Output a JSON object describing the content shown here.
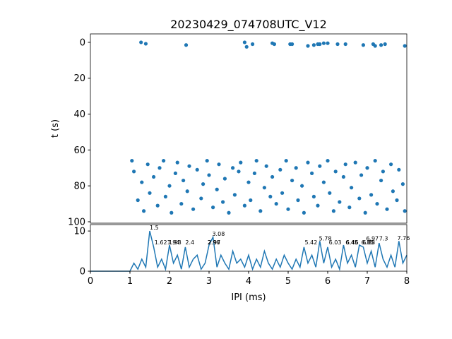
{
  "chart_data": [
    {
      "type": "scatter",
      "title": "20230429_074708UTC_V12",
      "ylabel": "t (s)",
      "color": "#1f77b4",
      "xlim": [
        0,
        8
      ],
      "ylim": [
        -4.7,
        100.8
      ],
      "y_inverted": true,
      "yticks": [
        0,
        20,
        40,
        60,
        80,
        100
      ],
      "x": [
        1.28,
        1.4,
        2.42,
        3.9,
        3.95,
        4.1,
        4.6,
        4.65,
        5.05,
        5.1,
        5.5,
        5.65,
        5.75,
        5.8,
        5.9,
        6.0,
        6.25,
        6.45,
        6.9,
        7.15,
        7.2,
        7.35,
        7.45,
        7.95,
        1.05,
        1.1,
        1.2,
        1.3,
        1.35,
        1.45,
        1.5,
        1.6,
        1.7,
        1.75,
        1.85,
        1.9,
        2.0,
        2.05,
        2.15,
        2.2,
        2.3,
        2.35,
        2.45,
        2.5,
        2.6,
        2.7,
        2.8,
        2.85,
        2.95,
        3.0,
        3.1,
        3.2,
        3.25,
        3.35,
        3.4,
        3.5,
        3.6,
        3.65,
        3.75,
        3.8,
        3.9,
        4.0,
        4.05,
        4.15,
        4.2,
        4.3,
        4.4,
        4.45,
        4.55,
        4.6,
        4.7,
        4.8,
        4.85,
        4.95,
        5.0,
        5.1,
        5.2,
        5.25,
        5.35,
        5.4,
        5.5,
        5.6,
        5.65,
        5.75,
        5.8,
        5.9,
        6.0,
        6.05,
        6.15,
        6.2,
        6.3,
        6.4,
        6.45,
        6.55,
        6.6,
        6.7,
        6.8,
        6.85,
        6.95,
        7.0,
        7.1,
        7.2,
        7.25,
        7.35,
        7.4,
        7.5,
        7.6,
        7.65,
        7.75,
        7.8,
        7.9,
        7.95
      ],
      "y": [
        0,
        0.8,
        1.5,
        0,
        2.5,
        1,
        0.5,
        1,
        1,
        1,
        2,
        1.5,
        1,
        1,
        0.5,
        0.5,
        1,
        1,
        1.5,
        1,
        2,
        1.5,
        1,
        2,
        66,
        72,
        88,
        78,
        94,
        68,
        84,
        75,
        91,
        70,
        66,
        86,
        80,
        95,
        73,
        67,
        90,
        77,
        83,
        69,
        93,
        71,
        87,
        79,
        66,
        74,
        92,
        82,
        68,
        89,
        76,
        95,
        70,
        85,
        72,
        67,
        91,
        78,
        88,
        73,
        66,
        94,
        81,
        69,
        86,
        75,
        90,
        71,
        84,
        66,
        93,
        77,
        70,
        88,
        80,
        95,
        67,
        73,
        86,
        91,
        69,
        78,
        66,
        84,
        94,
        72,
        89,
        75,
        68,
        92,
        81,
        67,
        87,
        74,
        95,
        70,
        85,
        66,
        90,
        77,
        72,
        93,
        68,
        83,
        88,
        71,
        79,
        94
      ]
    },
    {
      "type": "line",
      "xlabel": "IPI (ms)",
      "color": "#1f77b4",
      "xlim": [
        0,
        8
      ],
      "xticks": [
        0,
        1,
        2,
        3,
        4,
        5,
        6,
        7,
        8
      ],
      "ylim": [
        0,
        11.6
      ],
      "yticks": [
        0,
        10
      ],
      "x": [
        0,
        0.1,
        0.2,
        0.3,
        0.4,
        0.5,
        0.6,
        0.7,
        0.8,
        0.9,
        1.0,
        1.1,
        1.2,
        1.3,
        1.4,
        1.5,
        1.6,
        1.7,
        1.8,
        1.9,
        2.0,
        2.1,
        2.2,
        2.3,
        2.4,
        2.5,
        2.6,
        2.7,
        2.8,
        2.9,
        3.0,
        3.1,
        3.2,
        3.3,
        3.4,
        3.5,
        3.6,
        3.7,
        3.8,
        3.9,
        4.0,
        4.1,
        4.2,
        4.3,
        4.4,
        4.5,
        4.6,
        4.7,
        4.8,
        4.9,
        5.0,
        5.1,
        5.2,
        5.3,
        5.4,
        5.5,
        5.6,
        5.7,
        5.8,
        5.9,
        6.0,
        6.1,
        6.2,
        6.3,
        6.4,
        6.5,
        6.6,
        6.7,
        6.8,
        6.9,
        7.0,
        7.1,
        7.2,
        7.3,
        7.4,
        7.5,
        7.6,
        7.7,
        7.8,
        7.9,
        8.0
      ],
      "values": [
        0,
        0,
        0,
        0,
        0,
        0,
        0,
        0,
        0,
        0,
        0,
        2,
        0.5,
        3,
        1,
        10,
        6,
        1,
        3,
        0.5,
        6.5,
        2,
        4,
        0.5,
        6,
        1,
        3,
        4,
        0.5,
        2,
        6.5,
        8.5,
        1,
        4,
        2,
        0.5,
        5,
        2,
        3,
        1,
        4,
        0.5,
        3,
        1,
        5,
        2,
        0.5,
        3,
        1,
        4,
        2,
        0.5,
        3,
        1,
        6,
        2,
        4,
        1,
        7.5,
        2,
        6,
        1,
        3,
        0.5,
        6.5,
        2,
        4,
        1,
        6.5,
        6,
        2,
        5,
        1,
        7,
        3,
        1,
        4,
        1,
        7.5,
        2,
        4
      ],
      "peaks": {
        "x": [
          1.5,
          1.62,
          1.94,
          1.98,
          2.4,
          2.96,
          2.97,
          3.08,
          5.42,
          5.78,
          6.03,
          6.45,
          6.46,
          6.85,
          6.88,
          6.97,
          7.3,
          7.76
        ],
        "y": [
          10,
          6.3,
          6.3,
          6.3,
          6.3,
          6.3,
          6.3,
          8.4,
          6.3,
          7.3,
          6.3,
          6.3,
          6.3,
          6.3,
          6.3,
          7.3,
          7.3,
          7.4
        ]
      }
    }
  ]
}
